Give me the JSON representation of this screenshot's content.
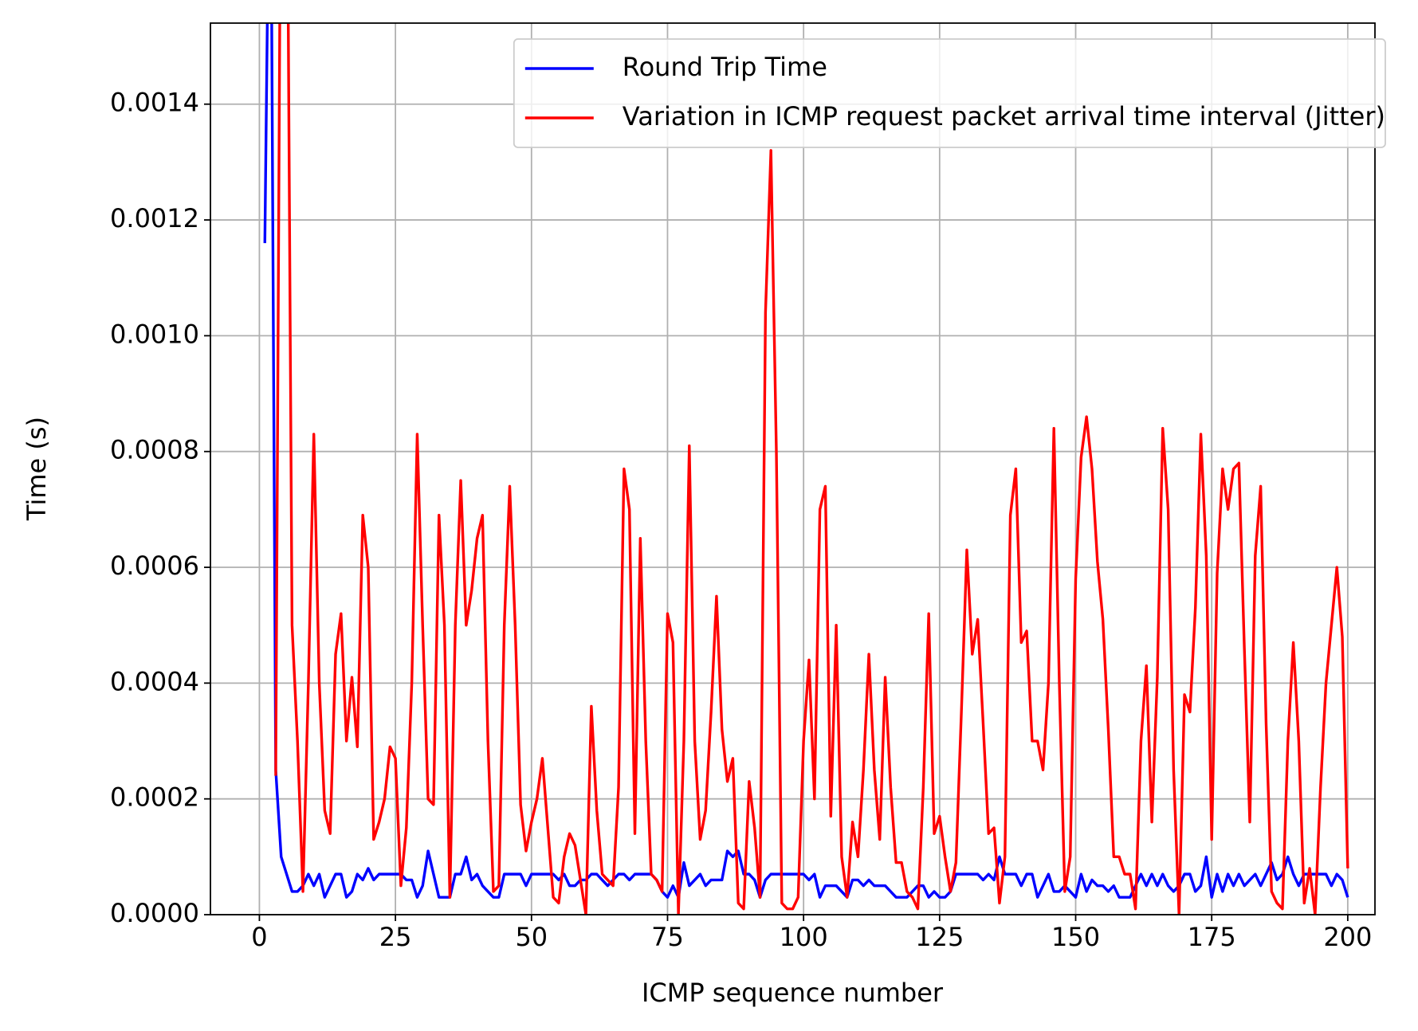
{
  "chart_data": {
    "type": "line",
    "xlabel": "ICMP sequence number",
    "ylabel": "Time (s)",
    "xlim": [
      -9,
      205
    ],
    "ylim": [
      0,
      0.00154
    ],
    "xticks": [
      0,
      25,
      50,
      75,
      100,
      125,
      150,
      175,
      200
    ],
    "yticks": [
      {
        "value": 0,
        "label": "0.0000"
      },
      {
        "value": 0.0002,
        "label": "0.0002"
      },
      {
        "value": 0.0004,
        "label": "0.0004"
      },
      {
        "value": 0.0006,
        "label": "0.0006"
      },
      {
        "value": 0.0008,
        "label": "0.0008"
      },
      {
        "value": 0.001,
        "label": "0.0010"
      },
      {
        "value": 0.0012,
        "label": "0.0012"
      },
      {
        "value": 0.0014,
        "label": "0.0014"
      }
    ],
    "grid": true,
    "legend": "upper right",
    "x": [
      1,
      2,
      3,
      4,
      5,
      6,
      7,
      8,
      9,
      10,
      11,
      12,
      13,
      14,
      15,
      16,
      17,
      18,
      19,
      20,
      21,
      22,
      23,
      24,
      25,
      26,
      27,
      28,
      29,
      30,
      31,
      32,
      33,
      34,
      35,
      36,
      37,
      38,
      39,
      40,
      41,
      42,
      43,
      44,
      45,
      46,
      47,
      48,
      49,
      50,
      51,
      52,
      53,
      54,
      55,
      56,
      57,
      58,
      59,
      60,
      61,
      62,
      63,
      64,
      65,
      66,
      67,
      68,
      69,
      70,
      71,
      72,
      73,
      74,
      75,
      76,
      77,
      78,
      79,
      80,
      81,
      82,
      83,
      84,
      85,
      86,
      87,
      88,
      89,
      90,
      91,
      92,
      93,
      94,
      95,
      96,
      97,
      98,
      99,
      100,
      101,
      102,
      103,
      104,
      105,
      106,
      107,
      108,
      109,
      110,
      111,
      112,
      113,
      114,
      115,
      116,
      117,
      118,
      119,
      120,
      121,
      122,
      123,
      124,
      125,
      126,
      127,
      128,
      129,
      130,
      131,
      132,
      133,
      134,
      135,
      136,
      137,
      138,
      139,
      140,
      141,
      142,
      143,
      144,
      145,
      146,
      147,
      148,
      149,
      150,
      151,
      152,
      153,
      154,
      155,
      156,
      157,
      158,
      159,
      160,
      161,
      162,
      163,
      164,
      165,
      166,
      167,
      168,
      169,
      170,
      171,
      172,
      173,
      174,
      175,
      176,
      177,
      178,
      179,
      180,
      181,
      182,
      183,
      184,
      185,
      186,
      187,
      188,
      189,
      190,
      191,
      192,
      193,
      194,
      195,
      196,
      197,
      198,
      199,
      200
    ],
    "series": [
      {
        "name": "Round Trip Time",
        "color": "#0000ff",
        "values": [
          0.00116,
          0.002,
          0.00025,
          0.0001,
          7e-05,
          4e-05,
          4e-05,
          5e-05,
          7e-05,
          5e-05,
          7e-05,
          3e-05,
          5e-05,
          7e-05,
          7e-05,
          3e-05,
          4e-05,
          7e-05,
          6e-05,
          8e-05,
          6e-05,
          7e-05,
          7e-05,
          7e-05,
          7e-05,
          7e-05,
          6e-05,
          6e-05,
          3e-05,
          5e-05,
          0.00011,
          7e-05,
          3e-05,
          3e-05,
          3e-05,
          7e-05,
          7e-05,
          0.0001,
          6e-05,
          7e-05,
          5e-05,
          4e-05,
          3e-05,
          3e-05,
          7e-05,
          7e-05,
          7e-05,
          7e-05,
          5e-05,
          7e-05,
          7e-05,
          7e-05,
          7e-05,
          7e-05,
          6e-05,
          7e-05,
          5e-05,
          5e-05,
          6e-05,
          6e-05,
          7e-05,
          7e-05,
          6e-05,
          5e-05,
          6e-05,
          7e-05,
          7e-05,
          6e-05,
          7e-05,
          7e-05,
          7e-05,
          7e-05,
          6e-05,
          4e-05,
          3e-05,
          5e-05,
          3e-05,
          9e-05,
          5e-05,
          6e-05,
          7e-05,
          5e-05,
          6e-05,
          6e-05,
          6e-05,
          0.00011,
          0.0001,
          0.00011,
          7e-05,
          7e-05,
          6e-05,
          3e-05,
          6e-05,
          7e-05,
          7e-05,
          7e-05,
          7e-05,
          7e-05,
          7e-05,
          7e-05,
          6e-05,
          7e-05,
          3e-05,
          5e-05,
          5e-05,
          5e-05,
          4e-05,
          3e-05,
          6e-05,
          6e-05,
          5e-05,
          6e-05,
          5e-05,
          5e-05,
          5e-05,
          4e-05,
          3e-05,
          3e-05,
          3e-05,
          4e-05,
          5e-05,
          5e-05,
          3e-05,
          4e-05,
          3e-05,
          3e-05,
          4e-05,
          7e-05,
          7e-05,
          7e-05,
          7e-05,
          7e-05,
          6e-05,
          7e-05,
          6e-05,
          0.0001,
          7e-05,
          7e-05,
          7e-05,
          5e-05,
          7e-05,
          7e-05,
          3e-05,
          5e-05,
          7e-05,
          4e-05,
          4e-05,
          5e-05,
          4e-05,
          3e-05,
          7e-05,
          4e-05,
          6e-05,
          5e-05,
          5e-05,
          4e-05,
          5e-05,
          3e-05,
          3e-05,
          3e-05,
          5e-05,
          7e-05,
          5e-05,
          7e-05,
          5e-05,
          7e-05,
          5e-05,
          4e-05,
          5e-05,
          7e-05,
          7e-05,
          4e-05,
          5e-05,
          0.0001,
          3e-05,
          7e-05,
          4e-05,
          7e-05,
          5e-05,
          7e-05,
          5e-05,
          6e-05,
          7e-05,
          5e-05,
          7e-05,
          9e-05,
          6e-05,
          7e-05,
          0.0001,
          7e-05,
          5e-05,
          7e-05,
          7e-05,
          7e-05,
          7e-05,
          7e-05,
          5e-05,
          7e-05,
          6e-05,
          3e-05
        ]
      },
      {
        "name": "Variation in ICMP request packet arrival time interval (Jitter)",
        "color": "#ff0000",
        "values": [
          null,
          null,
          0.00024,
          0.002,
          0.002,
          0.0005,
          0.0003,
          4e-05,
          0.0004,
          0.00083,
          0.0004,
          0.00018,
          0.00014,
          0.00045,
          0.00052,
          0.0003,
          0.00041,
          0.00029,
          0.00069,
          0.0006,
          0.00013,
          0.00016,
          0.0002,
          0.00029,
          0.00027,
          5e-05,
          0.00015,
          0.0004,
          0.00083,
          0.0005,
          0.0002,
          0.00019,
          0.00069,
          0.0005,
          3e-05,
          0.0005,
          0.00075,
          0.0005,
          0.00056,
          0.00065,
          0.00069,
          0.0003,
          4e-05,
          5e-05,
          0.0005,
          0.00074,
          0.0005,
          0.00019,
          0.00011,
          0.00016,
          0.0002,
          0.00027,
          0.00015,
          3e-05,
          2e-05,
          0.0001,
          0.00014,
          0.00012,
          6e-05,
          0.0,
          0.00036,
          0.00018,
          7e-05,
          6e-05,
          5e-05,
          0.00022,
          0.00077,
          0.0007,
          0.00014,
          0.00065,
          0.0003,
          7e-05,
          6e-05,
          4e-05,
          0.00052,
          0.00047,
          0.0,
          0.0003,
          0.00081,
          0.0003,
          0.00013,
          0.00018,
          0.00035,
          0.00055,
          0.00032,
          0.00023,
          0.00027,
          2e-05,
          1e-05,
          0.00023,
          0.00015,
          3e-05,
          0.00104,
          0.00132,
          0.0008,
          2e-05,
          1e-05,
          1e-05,
          3e-05,
          0.0003,
          0.00044,
          0.0002,
          0.0007,
          0.00074,
          0.00017,
          0.0005,
          0.0001,
          3e-05,
          0.00016,
          0.0001,
          0.00025,
          0.00045,
          0.00025,
          0.00013,
          0.00041,
          0.00022,
          9e-05,
          9e-05,
          4e-05,
          3e-05,
          1e-05,
          0.00022,
          0.00052,
          0.00014,
          0.00017,
          0.0001,
          4e-05,
          9e-05,
          0.00035,
          0.00063,
          0.00045,
          0.00051,
          0.00033,
          0.00014,
          0.00015,
          2e-05,
          0.0001,
          0.00069,
          0.00077,
          0.00047,
          0.00049,
          0.0003,
          0.0003,
          0.00025,
          0.0004,
          0.00084,
          0.0004,
          4e-05,
          0.0001,
          0.00058,
          0.00079,
          0.00086,
          0.00077,
          0.00061,
          0.00051,
          0.00032,
          0.0001,
          0.0001,
          7e-05,
          7e-05,
          1e-05,
          0.0003,
          0.00043,
          0.00016,
          0.00041,
          0.00084,
          0.0007,
          0.00025,
          0.0,
          0.00038,
          0.00035,
          0.00053,
          0.00083,
          0.00062,
          0.00013,
          0.00059,
          0.00077,
          0.0007,
          0.00077,
          0.00078,
          0.00046,
          0.00016,
          0.00062,
          0.00074,
          0.00033,
          4e-05,
          2e-05,
          1e-05,
          0.0003,
          0.00047,
          0.0003,
          2e-05,
          8e-05,
          0.0,
          0.00022,
          0.0004,
          0.0005,
          0.0006,
          0.00048,
          8e-05
        ]
      }
    ]
  }
}
